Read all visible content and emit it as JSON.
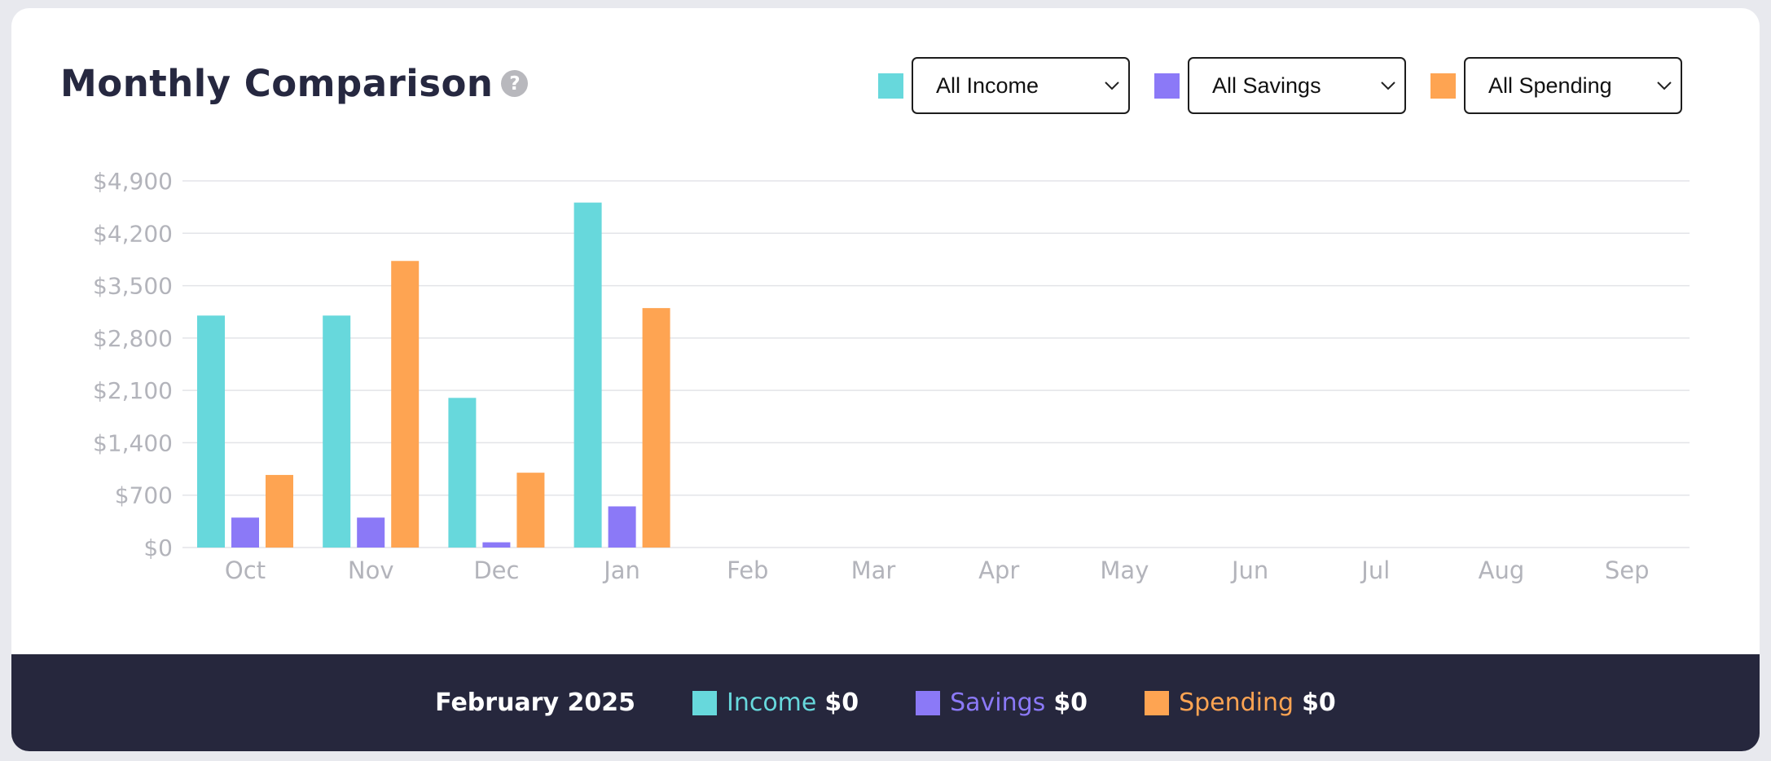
{
  "header": {
    "title": "Monthly Comparison",
    "help_icon": "?"
  },
  "filters": [
    {
      "label": "All Income",
      "color": "#67d8dc"
    },
    {
      "label": "All Savings",
      "color": "#8b79f7"
    },
    {
      "label": "All Spending",
      "color": "#fea452"
    }
  ],
  "chart_data": {
    "type": "bar",
    "categories": [
      "Oct",
      "Nov",
      "Dec",
      "Jan",
      "Feb",
      "Mar",
      "Apr",
      "May",
      "Jun",
      "Jul",
      "Aug",
      "Sep"
    ],
    "ylim": [
      0,
      4900
    ],
    "ytick_values": [
      0,
      700,
      1400,
      2100,
      2800,
      3500,
      4200,
      4900
    ],
    "ytick_labels": [
      "$0",
      "$700",
      "$1,400",
      "$2,100",
      "$2,800",
      "$3,500",
      "$4,200",
      "$4,900"
    ],
    "grid": true,
    "colors": [
      "#67d8dc",
      "#8b79f7",
      "#fea452"
    ],
    "series": [
      {
        "values": [
          3100,
          3100,
          2000,
          4610,
          0,
          0,
          0,
          0,
          0,
          0,
          0,
          0
        ]
      },
      {
        "values": [
          400,
          400,
          70,
          550,
          0,
          0,
          0,
          0,
          0,
          0,
          0,
          0
        ]
      },
      {
        "values": [
          970,
          3830,
          1000,
          3200,
          0,
          0,
          0,
          0,
          0,
          0,
          0,
          0
        ]
      }
    ]
  },
  "footer": {
    "date": "February 2025",
    "items": [
      {
        "label": "Income",
        "value": "$0",
        "color": "#67d8dc"
      },
      {
        "label": "Savings",
        "value": "$0",
        "color": "#8b79f7"
      },
      {
        "label": "Spending",
        "value": "$0",
        "color": "#fea452"
      }
    ]
  }
}
